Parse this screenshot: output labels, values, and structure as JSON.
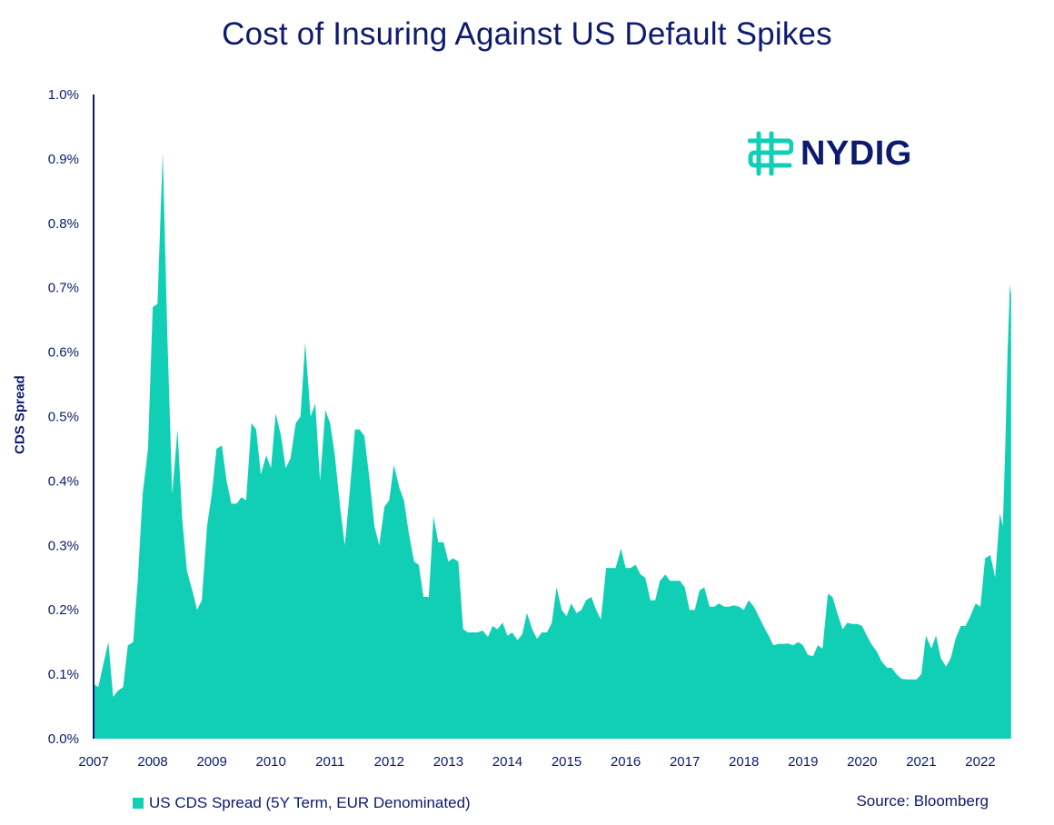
{
  "chart_data": {
    "type": "area",
    "title": "Cost of Insuring Against US Default Spikes",
    "xlabel": "",
    "ylabel": "CDS Spread",
    "x_ticks": [
      "2007",
      "2008",
      "2009",
      "2010",
      "2011",
      "2012",
      "2013",
      "2014",
      "2015",
      "2016",
      "2017",
      "2018",
      "2019",
      "2020",
      "2021",
      "2022"
    ],
    "y_ticks": [
      "0.0%",
      "0.1%",
      "0.2%",
      "0.3%",
      "0.4%",
      "0.5%",
      "0.6%",
      "0.7%",
      "0.8%",
      "0.9%",
      "1.0%"
    ],
    "xlim": [
      2007.0,
      2022.4
    ],
    "ylim": [
      0,
      1.0
    ],
    "series": [
      {
        "name": "US CDS Spread (5Y Term, EUR Denominated)",
        "color": "#11cfb5",
        "points": [
          [
            2007.0,
            0.085
          ],
          [
            2007.08,
            0.08
          ],
          [
            2007.15,
            0.11
          ],
          [
            2007.25,
            0.15
          ],
          [
            2007.33,
            0.065
          ],
          [
            2007.42,
            0.075
          ],
          [
            2007.5,
            0.08
          ],
          [
            2007.58,
            0.145
          ],
          [
            2007.67,
            0.15
          ],
          [
            2007.75,
            0.25
          ],
          [
            2007.83,
            0.38
          ],
          [
            2007.92,
            0.45
          ],
          [
            2008.0,
            0.67
          ],
          [
            2008.08,
            0.675
          ],
          [
            2008.17,
            0.91
          ],
          [
            2008.25,
            0.62
          ],
          [
            2008.33,
            0.38
          ],
          [
            2008.42,
            0.48
          ],
          [
            2008.5,
            0.34
          ],
          [
            2008.58,
            0.26
          ],
          [
            2008.67,
            0.23
          ],
          [
            2008.75,
            0.2
          ],
          [
            2008.83,
            0.215
          ],
          [
            2008.92,
            0.33
          ],
          [
            2009.0,
            0.38
          ],
          [
            2009.08,
            0.45
          ],
          [
            2009.17,
            0.455
          ],
          [
            2009.25,
            0.4
          ],
          [
            2009.33,
            0.365
          ],
          [
            2009.42,
            0.365
          ],
          [
            2009.5,
            0.375
          ],
          [
            2009.58,
            0.37
          ],
          [
            2009.67,
            0.49
          ],
          [
            2009.75,
            0.48
          ],
          [
            2009.83,
            0.41
          ],
          [
            2009.92,
            0.44
          ],
          [
            2010.0,
            0.42
          ],
          [
            2010.08,
            0.505
          ],
          [
            2010.17,
            0.47
          ],
          [
            2010.25,
            0.42
          ],
          [
            2010.33,
            0.435
          ],
          [
            2010.42,
            0.49
          ],
          [
            2010.5,
            0.5
          ],
          [
            2010.58,
            0.615
          ],
          [
            2010.67,
            0.5
          ],
          [
            2010.75,
            0.52
          ],
          [
            2010.83,
            0.4
          ],
          [
            2010.92,
            0.51
          ],
          [
            2011.0,
            0.49
          ],
          [
            2011.08,
            0.44
          ],
          [
            2011.17,
            0.36
          ],
          [
            2011.25,
            0.3
          ],
          [
            2011.33,
            0.38
          ],
          [
            2011.42,
            0.48
          ],
          [
            2011.5,
            0.48
          ],
          [
            2011.58,
            0.47
          ],
          [
            2011.67,
            0.4
          ],
          [
            2011.75,
            0.33
          ],
          [
            2011.83,
            0.3
          ],
          [
            2011.92,
            0.36
          ],
          [
            2012.0,
            0.37
          ],
          [
            2012.08,
            0.425
          ],
          [
            2012.17,
            0.39
          ],
          [
            2012.25,
            0.37
          ],
          [
            2012.33,
            0.32
          ],
          [
            2012.42,
            0.275
          ],
          [
            2012.5,
            0.27
          ],
          [
            2012.58,
            0.22
          ],
          [
            2012.67,
            0.22
          ],
          [
            2012.75,
            0.345
          ],
          [
            2012.83,
            0.305
          ],
          [
            2012.92,
            0.305
          ],
          [
            2013.0,
            0.275
          ],
          [
            2013.08,
            0.28
          ],
          [
            2013.17,
            0.275
          ],
          [
            2013.25,
            0.17
          ],
          [
            2013.33,
            0.165
          ],
          [
            2013.42,
            0.165
          ],
          [
            2013.5,
            0.165
          ],
          [
            2013.58,
            0.168
          ],
          [
            2013.67,
            0.158
          ],
          [
            2013.75,
            0.175
          ],
          [
            2013.83,
            0.17
          ],
          [
            2013.92,
            0.18
          ],
          [
            2014.0,
            0.16
          ],
          [
            2014.08,
            0.165
          ],
          [
            2014.17,
            0.153
          ],
          [
            2014.25,
            0.162
          ],
          [
            2014.33,
            0.195
          ],
          [
            2014.42,
            0.17
          ],
          [
            2014.5,
            0.155
          ],
          [
            2014.58,
            0.165
          ],
          [
            2014.67,
            0.165
          ],
          [
            2014.75,
            0.18
          ],
          [
            2014.83,
            0.235
          ],
          [
            2014.92,
            0.2
          ],
          [
            2015.0,
            0.19
          ],
          [
            2015.08,
            0.21
          ],
          [
            2015.17,
            0.195
          ],
          [
            2015.25,
            0.2
          ],
          [
            2015.33,
            0.215
          ],
          [
            2015.42,
            0.22
          ],
          [
            2015.5,
            0.2
          ],
          [
            2015.58,
            0.185
          ],
          [
            2015.67,
            0.265
          ],
          [
            2015.75,
            0.265
          ],
          [
            2015.83,
            0.265
          ],
          [
            2015.92,
            0.295
          ],
          [
            2016.0,
            0.265
          ],
          [
            2016.08,
            0.265
          ],
          [
            2016.17,
            0.27
          ],
          [
            2016.25,
            0.255
          ],
          [
            2016.33,
            0.25
          ],
          [
            2016.42,
            0.215
          ],
          [
            2016.5,
            0.215
          ],
          [
            2016.58,
            0.245
          ],
          [
            2016.67,
            0.255
          ],
          [
            2016.75,
            0.245
          ],
          [
            2016.83,
            0.245
          ],
          [
            2016.92,
            0.245
          ],
          [
            2017.0,
            0.235
          ],
          [
            2017.08,
            0.2
          ],
          [
            2017.17,
            0.2
          ],
          [
            2017.25,
            0.23
          ],
          [
            2017.33,
            0.235
          ],
          [
            2017.42,
            0.205
          ],
          [
            2017.5,
            0.205
          ],
          [
            2017.58,
            0.21
          ],
          [
            2017.67,
            0.205
          ],
          [
            2017.75,
            0.205
          ],
          [
            2017.83,
            0.207
          ],
          [
            2017.92,
            0.205
          ],
          [
            2018.0,
            0.2
          ],
          [
            2018.08,
            0.215
          ],
          [
            2018.17,
            0.205
          ],
          [
            2018.25,
            0.19
          ],
          [
            2018.33,
            0.175
          ],
          [
            2018.42,
            0.16
          ],
          [
            2018.5,
            0.145
          ],
          [
            2018.58,
            0.147
          ],
          [
            2018.67,
            0.147
          ],
          [
            2018.75,
            0.148
          ],
          [
            2018.83,
            0.145
          ],
          [
            2018.92,
            0.15
          ],
          [
            2019.0,
            0.145
          ],
          [
            2019.08,
            0.13
          ],
          [
            2019.17,
            0.128
          ],
          [
            2019.25,
            0.145
          ],
          [
            2019.33,
            0.14
          ],
          [
            2019.42,
            0.225
          ],
          [
            2019.5,
            0.22
          ],
          [
            2019.58,
            0.195
          ],
          [
            2019.67,
            0.17
          ],
          [
            2019.75,
            0.18
          ],
          [
            2019.83,
            0.178
          ],
          [
            2019.92,
            0.178
          ],
          [
            2020.0,
            0.175
          ],
          [
            2020.08,
            0.16
          ],
          [
            2020.17,
            0.145
          ],
          [
            2020.25,
            0.135
          ],
          [
            2020.33,
            0.12
          ],
          [
            2020.42,
            0.11
          ],
          [
            2020.5,
            0.11
          ],
          [
            2020.58,
            0.1
          ],
          [
            2020.67,
            0.093
          ],
          [
            2020.75,
            0.092
          ],
          [
            2020.83,
            0.092
          ],
          [
            2020.92,
            0.092
          ],
          [
            2021.0,
            0.1
          ],
          [
            2021.08,
            0.16
          ],
          [
            2021.17,
            0.14
          ],
          [
            2021.25,
            0.16
          ],
          [
            2021.33,
            0.125
          ],
          [
            2021.42,
            0.112
          ],
          [
            2021.5,
            0.125
          ],
          [
            2021.58,
            0.155
          ],
          [
            2021.67,
            0.175
          ],
          [
            2021.75,
            0.175
          ],
          [
            2021.83,
            0.19
          ],
          [
            2021.92,
            0.21
          ],
          [
            2022.0,
            0.205
          ],
          [
            2022.08,
            0.28
          ],
          [
            2022.17,
            0.285
          ],
          [
            2022.25,
            0.25
          ],
          [
            2022.33,
            0.35
          ],
          [
            2022.38,
            0.33
          ],
          [
            2022.42,
            0.45
          ],
          [
            2022.46,
            0.6
          ],
          [
            2022.5,
            0.705
          ],
          [
            2022.52,
            0.69
          ]
        ]
      }
    ],
    "legend": "bottom-left",
    "source": "Source: Bloomberg",
    "logo_text": "NYDIG",
    "grid": false
  },
  "colors": {
    "accent": "#11cfb5",
    "text": "#0d1a6e"
  }
}
